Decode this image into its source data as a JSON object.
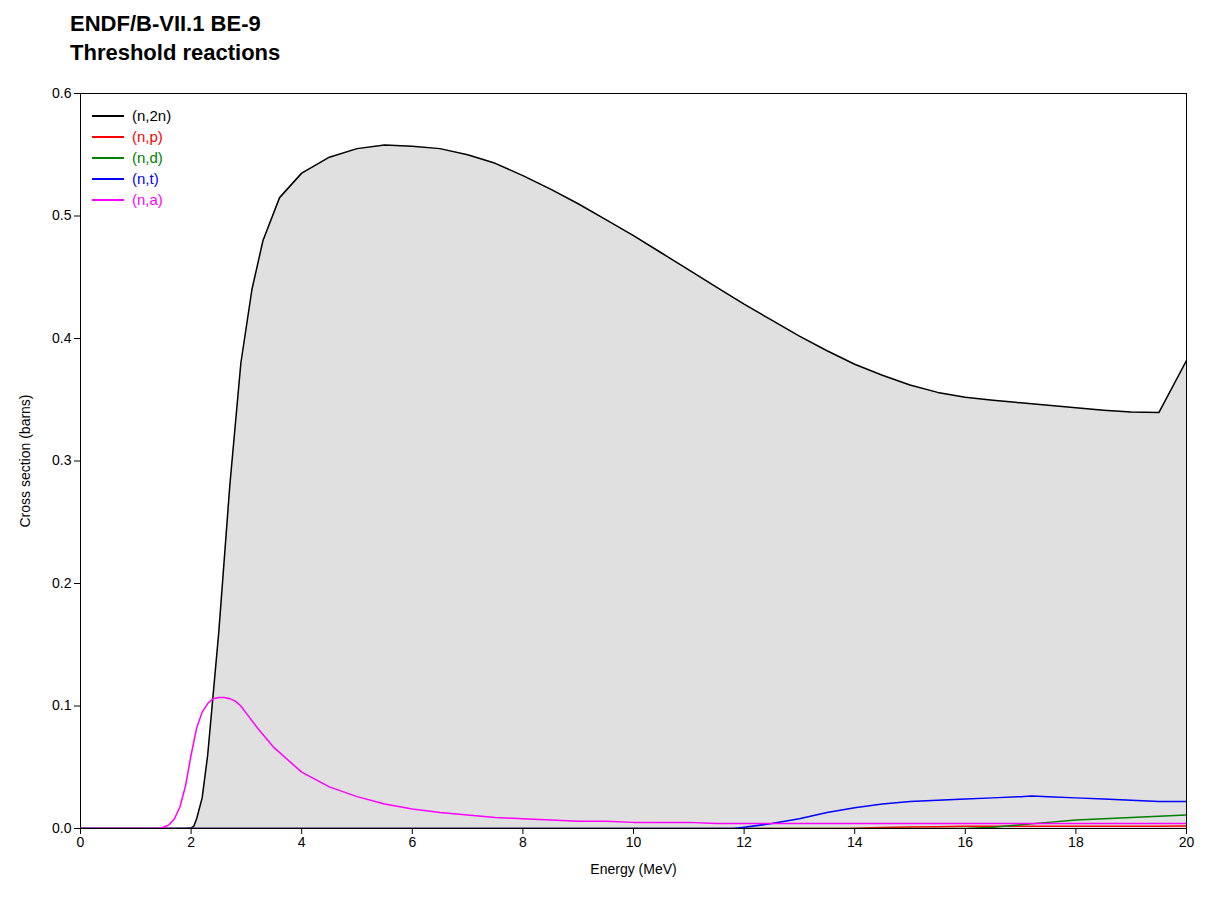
{
  "chart_data": {
    "type": "line",
    "title": "ENDF/B-VII.1 BE-9",
    "subtitle": "Threshold reactions",
    "xlabel": "Energy (MeV)",
    "ylabel": "Cross section (barns)",
    "xlim": [
      0,
      20
    ],
    "ylim": [
      0,
      0.6
    ],
    "xticks": [
      0,
      2,
      4,
      6,
      8,
      10,
      12,
      14,
      16,
      18,
      20
    ],
    "yticks": [
      {
        "value": 0,
        "label": "0.0"
      },
      0.1,
      0.2,
      0.3,
      0.4,
      0.5,
      0.6
    ],
    "grid": false,
    "legend": "upper left",
    "series": [
      {
        "name": "(n,2n)",
        "color": "black",
        "type": "area",
        "x": [
          0.0,
          1.9,
          2.0,
          2.05,
          2.1,
          2.2,
          2.3,
          2.5,
          2.7,
          2.9,
          3.1,
          3.3,
          3.6,
          4.0,
          4.5,
          5.0,
          5.5,
          6.0,
          6.5,
          7.0,
          7.5,
          8.0,
          8.5,
          9.0,
          9.5,
          10.0,
          10.5,
          11.0,
          11.5,
          12.0,
          12.5,
          13.0,
          13.5,
          14.0,
          14.5,
          15.0,
          15.5,
          16.0,
          16.5,
          17.0,
          17.5,
          18.0,
          18.5,
          19.0,
          19.5,
          20.0
        ],
        "values": [
          0.0,
          0.0,
          0.0005,
          0.002,
          0.008,
          0.025,
          0.06,
          0.16,
          0.28,
          0.38,
          0.44,
          0.48,
          0.515,
          0.535,
          0.548,
          0.555,
          0.558,
          0.557,
          0.555,
          0.55,
          0.543,
          0.533,
          0.522,
          0.51,
          0.497,
          0.484,
          0.47,
          0.456,
          0.442,
          0.428,
          0.415,
          0.402,
          0.39,
          0.379,
          0.37,
          0.362,
          0.356,
          0.352,
          0.3495,
          0.3475,
          0.3455,
          0.3435,
          0.3415,
          0.34,
          0.3395,
          0.382
        ]
      },
      {
        "name": "(n,p)",
        "color": "red",
        "type": "line",
        "x": [
          0.0,
          13.8,
          14.0,
          14.5,
          15.0,
          15.5,
          16.0,
          16.5,
          17.0,
          17.5,
          18.0,
          18.5,
          19.0,
          19.5,
          20.0
        ],
        "values": [
          0.0,
          0.0,
          0.0003,
          0.0008,
          0.0012,
          0.0015,
          0.0018,
          0.0018,
          0.0018,
          0.0018,
          0.0018,
          0.0018,
          0.0018,
          0.0018,
          0.002
        ]
      },
      {
        "name": "(n,d)",
        "color": "green",
        "type": "line",
        "x": [
          0.0,
          16.0,
          16.5,
          17.0,
          17.5,
          18.0,
          18.5,
          19.0,
          19.5,
          20.0
        ],
        "values": [
          0.0,
          0.0,
          0.001,
          0.003,
          0.005,
          0.007,
          0.008,
          0.009,
          0.01,
          0.011
        ]
      },
      {
        "name": "(n,t)",
        "color": "blue",
        "type": "line",
        "x": [
          0.0,
          11.8,
          12.0,
          12.5,
          13.0,
          13.5,
          14.0,
          14.5,
          15.0,
          15.5,
          16.0,
          16.5,
          17.0,
          17.2,
          17.5,
          18.0,
          18.5,
          19.0,
          19.5,
          20.0
        ],
        "values": [
          0.0,
          0.0,
          0.001,
          0.004,
          0.008,
          0.013,
          0.017,
          0.02,
          0.022,
          0.023,
          0.024,
          0.025,
          0.026,
          0.0265,
          0.026,
          0.025,
          0.024,
          0.023,
          0.022,
          0.022
        ]
      },
      {
        "name": "(n,a)",
        "color": "magenta",
        "type": "line",
        "x": [
          0.0,
          1.4,
          1.5,
          1.6,
          1.7,
          1.8,
          1.9,
          2.0,
          2.1,
          2.2,
          2.3,
          2.4,
          2.5,
          2.6,
          2.7,
          2.8,
          2.9,
          3.0,
          3.2,
          3.5,
          4.0,
          4.5,
          5.0,
          5.5,
          6.0,
          6.5,
          7.0,
          7.5,
          8.0,
          8.5,
          9.0,
          9.5,
          10.0,
          10.5,
          11.0,
          11.5,
          12.0,
          12.5,
          13.0,
          13.5,
          14.0,
          14.5,
          15.0,
          15.5,
          16.0,
          16.5,
          17.0,
          17.5,
          18.0,
          18.5,
          19.0,
          19.5,
          20.0
        ],
        "values": [
          0.0,
          0.0,
          0.001,
          0.003,
          0.008,
          0.018,
          0.035,
          0.06,
          0.082,
          0.095,
          0.102,
          0.106,
          0.107,
          0.107,
          0.106,
          0.104,
          0.1,
          0.094,
          0.082,
          0.066,
          0.046,
          0.034,
          0.026,
          0.02,
          0.016,
          0.013,
          0.011,
          0.009,
          0.008,
          0.007,
          0.006,
          0.006,
          0.005,
          0.005,
          0.005,
          0.004,
          0.004,
          0.004,
          0.004,
          0.004,
          0.004,
          0.004,
          0.004,
          0.004,
          0.004,
          0.004,
          0.004,
          0.004,
          0.004,
          0.004,
          0.004,
          0.004,
          0.004
        ]
      }
    ]
  }
}
